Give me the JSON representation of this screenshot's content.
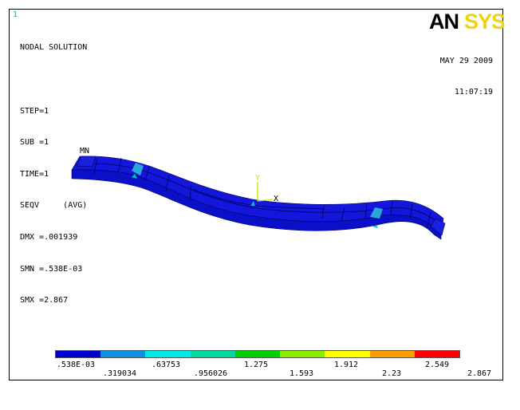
{
  "window": {
    "number": "1"
  },
  "info": {
    "lines": [
      "NODAL SOLUTION",
      "",
      "STEP=1",
      "SUB =1",
      "TIME=1",
      "SEQV     (AVG)",
      "DMX =.001939",
      "SMN =.538E-03",
      "SMX =2.867"
    ]
  },
  "logo": {
    "text_black": "AN",
    "text_yellow": "SYS",
    "color_black": "#000000",
    "color_yellow": "#f2d20a"
  },
  "date": {
    "date": "MAY 29 2009",
    "time": "11:07:19"
  },
  "model": {
    "min_label": "MN",
    "axis_y": "Y",
    "axis_x": "X",
    "body_color": "#0a10c8"
  },
  "legend": {
    "colors": [
      "#0000cc",
      "#0e8fe0",
      "#00e8e8",
      "#00d8a0",
      "#00d000",
      "#8cec00",
      "#ffff00",
      "#ff9c00",
      "#ff0000"
    ],
    "values_top": [
      ".538E-03",
      ".63753",
      "1.275",
      "1.912",
      "2.549"
    ],
    "values_bottom": [
      ".319034",
      ".956026",
      "1.593",
      "2.23",
      "2.867"
    ]
  }
}
